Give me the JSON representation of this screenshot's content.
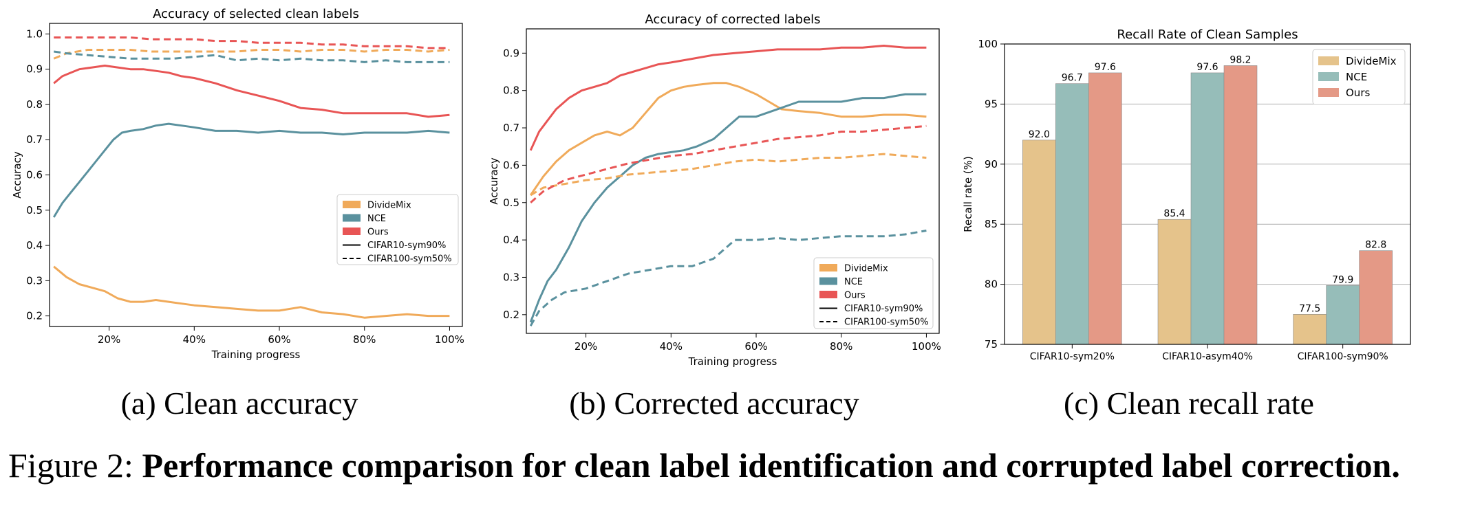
{
  "colors": {
    "DivideMix": "#f0aa5a",
    "NCE": "#5a919e",
    "Ours": "#e85555",
    "bar_DivideMix": "#e5c38b",
    "bar_NCE": "#96bdb9",
    "bar_Ours": "#e49986"
  },
  "captions": {
    "a": "(a) Clean accuracy",
    "b": "(b) Corrected accuracy",
    "c": "(c) Clean recall rate",
    "figure_label": "Figure 2:",
    "figure_text": "Performance comparison for clean label identification and corrupted label correction."
  },
  "chart_data": [
    {
      "type": "line",
      "title": "Accuracy of selected clean labels",
      "xlabel": "Training progress",
      "ylabel": "Accuracy",
      "xlim": [
        6,
        103
      ],
      "ylim": [
        0.17,
        1.03
      ],
      "xticks": [
        20,
        40,
        60,
        80,
        100
      ],
      "xtick_labels": [
        "20%",
        "40%",
        "60%",
        "80%",
        "100%"
      ],
      "yticks": [
        0.2,
        0.3,
        0.4,
        0.5,
        0.6,
        0.7,
        0.8,
        0.9,
        1.0
      ],
      "ytick_labels": [
        "0.2",
        "0.3",
        "0.4",
        "0.5",
        "0.6",
        "0.7",
        "0.8",
        "0.9",
        "1.0"
      ],
      "legend": {
        "placement": "center-right",
        "methods": [
          "DivideMix",
          "NCE",
          "Ours"
        ],
        "styles": [
          "CIFAR10-sym90%",
          "CIFAR100-sym50%"
        ]
      },
      "series": [
        {
          "method": "DivideMix",
          "style": "solid",
          "x": [
            7,
            10,
            13,
            16,
            19,
            22,
            25,
            28,
            31,
            34,
            37,
            40,
            45,
            50,
            55,
            60,
            65,
            70,
            75,
            80,
            85,
            90,
            95,
            100
          ],
          "y": [
            0.34,
            0.31,
            0.29,
            0.28,
            0.27,
            0.25,
            0.24,
            0.24,
            0.245,
            0.24,
            0.235,
            0.23,
            0.225,
            0.22,
            0.215,
            0.215,
            0.225,
            0.21,
            0.205,
            0.195,
            0.2,
            0.205,
            0.2,
            0.2
          ]
        },
        {
          "method": "NCE",
          "style": "solid",
          "x": [
            7,
            9,
            11,
            13,
            15,
            17,
            19,
            21,
            23,
            25,
            28,
            31,
            34,
            37,
            40,
            45,
            50,
            55,
            60,
            65,
            70,
            75,
            80,
            85,
            90,
            95,
            100
          ],
          "y": [
            0.48,
            0.52,
            0.55,
            0.58,
            0.61,
            0.64,
            0.67,
            0.7,
            0.72,
            0.725,
            0.73,
            0.74,
            0.745,
            0.74,
            0.735,
            0.725,
            0.725,
            0.72,
            0.725,
            0.72,
            0.72,
            0.715,
            0.72,
            0.72,
            0.72,
            0.725,
            0.72
          ]
        },
        {
          "method": "Ours",
          "style": "solid",
          "x": [
            7,
            9,
            11,
            13,
            16,
            19,
            22,
            25,
            28,
            31,
            34,
            37,
            40,
            45,
            50,
            55,
            60,
            65,
            70,
            75,
            80,
            85,
            90,
            95,
            100
          ],
          "y": [
            0.86,
            0.88,
            0.89,
            0.9,
            0.905,
            0.91,
            0.905,
            0.9,
            0.9,
            0.895,
            0.89,
            0.88,
            0.875,
            0.86,
            0.84,
            0.825,
            0.81,
            0.79,
            0.785,
            0.775,
            0.775,
            0.775,
            0.775,
            0.765,
            0.77
          ]
        },
        {
          "method": "DivideMix",
          "style": "dashed",
          "x": [
            7,
            10,
            15,
            20,
            25,
            30,
            35,
            40,
            45,
            50,
            55,
            60,
            65,
            70,
            75,
            80,
            85,
            90,
            95,
            100
          ],
          "y": [
            0.93,
            0.945,
            0.955,
            0.955,
            0.955,
            0.95,
            0.95,
            0.95,
            0.95,
            0.95,
            0.955,
            0.955,
            0.95,
            0.955,
            0.955,
            0.95,
            0.955,
            0.955,
            0.95,
            0.955
          ]
        },
        {
          "method": "NCE",
          "style": "dashed",
          "x": [
            7,
            10,
            15,
            20,
            25,
            30,
            35,
            40,
            45,
            50,
            55,
            60,
            65,
            70,
            75,
            80,
            85,
            90,
            95,
            100
          ],
          "y": [
            0.95,
            0.945,
            0.94,
            0.935,
            0.93,
            0.93,
            0.93,
            0.935,
            0.94,
            0.925,
            0.93,
            0.925,
            0.93,
            0.925,
            0.925,
            0.92,
            0.925,
            0.92,
            0.92,
            0.92
          ]
        },
        {
          "method": "Ours",
          "style": "dashed",
          "x": [
            7,
            10,
            15,
            20,
            25,
            30,
            35,
            40,
            45,
            50,
            55,
            60,
            65,
            70,
            75,
            80,
            85,
            90,
            95,
            100
          ],
          "y": [
            0.99,
            0.99,
            0.99,
            0.99,
            0.99,
            0.985,
            0.985,
            0.985,
            0.98,
            0.98,
            0.975,
            0.975,
            0.975,
            0.97,
            0.97,
            0.965,
            0.965,
            0.965,
            0.96,
            0.96
          ]
        }
      ]
    },
    {
      "type": "line",
      "title": "Accuracy of corrected labels",
      "xlabel": "Training progress",
      "ylabel": "Accuracy",
      "xlim": [
        6,
        103
      ],
      "ylim": [
        0.15,
        0.965
      ],
      "xticks": [
        20,
        40,
        60,
        80,
        100
      ],
      "xtick_labels": [
        "20%",
        "40%",
        "60%",
        "80%",
        "100%"
      ],
      "yticks": [
        0.2,
        0.3,
        0.4,
        0.5,
        0.6,
        0.7,
        0.8,
        0.9
      ],
      "ytick_labels": [
        "0.2",
        "0.3",
        "0.4",
        "0.5",
        "0.6",
        "0.7",
        "0.8",
        "0.9"
      ],
      "legend": {
        "placement": "lower-right",
        "methods": [
          "DivideMix",
          "NCE",
          "Ours"
        ],
        "styles": [
          "CIFAR10-sym90%",
          "CIFAR100-sym50%"
        ]
      },
      "series": [
        {
          "method": "DivideMix",
          "style": "solid",
          "x": [
            7,
            10,
            13,
            16,
            19,
            22,
            25,
            28,
            31,
            34,
            37,
            40,
            43,
            46,
            50,
            53,
            56,
            60,
            63,
            66,
            70,
            75,
            80,
            85,
            90,
            95,
            100
          ],
          "y": [
            0.52,
            0.57,
            0.61,
            0.64,
            0.66,
            0.68,
            0.69,
            0.68,
            0.7,
            0.74,
            0.78,
            0.8,
            0.81,
            0.815,
            0.82,
            0.82,
            0.81,
            0.79,
            0.77,
            0.75,
            0.745,
            0.74,
            0.73,
            0.73,
            0.735,
            0.735,
            0.73
          ]
        },
        {
          "method": "NCE",
          "style": "solid",
          "x": [
            7,
            9,
            11,
            13,
            16,
            19,
            22,
            25,
            28,
            31,
            34,
            37,
            40,
            43,
            46,
            50,
            53,
            56,
            60,
            65,
            70,
            75,
            80,
            85,
            90,
            95,
            100
          ],
          "y": [
            0.18,
            0.24,
            0.29,
            0.32,
            0.38,
            0.45,
            0.5,
            0.54,
            0.57,
            0.6,
            0.62,
            0.63,
            0.635,
            0.64,
            0.65,
            0.67,
            0.7,
            0.73,
            0.73,
            0.75,
            0.77,
            0.77,
            0.77,
            0.78,
            0.78,
            0.79,
            0.79
          ]
        },
        {
          "method": "Ours",
          "style": "solid",
          "x": [
            7,
            9,
            11,
            13,
            16,
            19,
            22,
            25,
            28,
            31,
            34,
            37,
            40,
            45,
            50,
            55,
            60,
            65,
            70,
            75,
            80,
            85,
            90,
            95,
            100
          ],
          "y": [
            0.64,
            0.69,
            0.72,
            0.75,
            0.78,
            0.8,
            0.81,
            0.82,
            0.84,
            0.85,
            0.86,
            0.87,
            0.875,
            0.885,
            0.895,
            0.9,
            0.905,
            0.91,
            0.91,
            0.91,
            0.915,
            0.915,
            0.92,
            0.915,
            0.915
          ]
        },
        {
          "method": "DivideMix",
          "style": "dashed",
          "x": [
            7,
            10,
            15,
            20,
            25,
            30,
            35,
            40,
            45,
            50,
            55,
            60,
            65,
            70,
            75,
            80,
            85,
            90,
            95,
            100
          ],
          "y": [
            0.52,
            0.54,
            0.55,
            0.56,
            0.565,
            0.575,
            0.58,
            0.585,
            0.59,
            0.6,
            0.61,
            0.615,
            0.61,
            0.615,
            0.62,
            0.62,
            0.625,
            0.63,
            0.625,
            0.62
          ]
        },
        {
          "method": "NCE",
          "style": "dashed",
          "x": [
            7,
            9,
            12,
            15,
            20,
            25,
            30,
            35,
            40,
            45,
            50,
            55,
            60,
            65,
            70,
            75,
            80,
            85,
            90,
            95,
            100
          ],
          "y": [
            0.17,
            0.21,
            0.24,
            0.26,
            0.27,
            0.29,
            0.31,
            0.32,
            0.33,
            0.33,
            0.35,
            0.4,
            0.4,
            0.405,
            0.4,
            0.405,
            0.41,
            0.41,
            0.41,
            0.415,
            0.425
          ]
        },
        {
          "method": "Ours",
          "style": "dashed",
          "x": [
            7,
            10,
            15,
            20,
            25,
            30,
            35,
            40,
            45,
            50,
            55,
            60,
            65,
            70,
            75,
            80,
            85,
            90,
            95,
            100
          ],
          "y": [
            0.5,
            0.53,
            0.56,
            0.575,
            0.59,
            0.605,
            0.615,
            0.625,
            0.63,
            0.64,
            0.65,
            0.66,
            0.67,
            0.675,
            0.68,
            0.69,
            0.69,
            0.695,
            0.7,
            0.705
          ]
        }
      ]
    },
    {
      "type": "bar",
      "title": "Recall Rate of Clean Samples",
      "xlabel": "",
      "ylabel": "Recall rate (%)",
      "ylim": [
        75,
        100
      ],
      "yticks": [
        75,
        80,
        85,
        90,
        95,
        100
      ],
      "ytick_labels": [
        "75",
        "80",
        "85",
        "90",
        "95",
        "100"
      ],
      "grid": "horizontal",
      "legend_placement": "top-right",
      "categories": [
        "CIFAR10-sym20%",
        "CIFAR10-asym40%",
        "CIFAR100-sym90%"
      ],
      "series": [
        {
          "name": "DivideMix",
          "values": [
            92.0,
            85.4,
            77.5
          ],
          "labels": [
            "92.0",
            "85.4",
            "77.5"
          ]
        },
        {
          "name": "NCE",
          "values": [
            96.7,
            97.6,
            79.9
          ],
          "labels": [
            "96.7",
            "97.6",
            "79.9"
          ]
        },
        {
          "name": "Ours",
          "values": [
            97.6,
            98.2,
            82.8
          ],
          "labels": [
            "97.6",
            "98.2",
            "82.8"
          ]
        }
      ]
    }
  ]
}
